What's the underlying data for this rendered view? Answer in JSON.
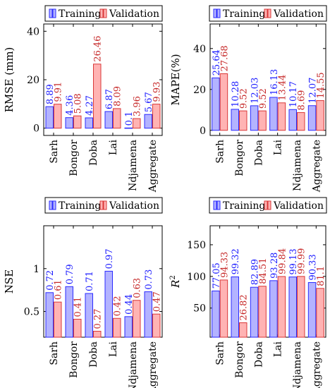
{
  "legend": {
    "training": "Training",
    "validation": "Validation"
  },
  "colors": {
    "training_fill": "#b3b3ff",
    "training_stroke": "#2b2bff",
    "training_label": "#1a1aff",
    "validation_fill": "#ffb3b3",
    "validation_stroke": "#d93838",
    "validation_label": "#c62828",
    "axis": "#000000"
  },
  "chart_data": [
    {
      "type": "bar",
      "categories": [
        "Sarh",
        "Bongor",
        "Doba",
        "Lai",
        "Ndjamena",
        "Aggregate"
      ],
      "ylabel": "RMSE (mm)",
      "ylabel_sup": "",
      "ylim": [
        -3,
        43
      ],
      "yticks": [
        0,
        20,
        40
      ],
      "series": [
        {
          "name": "Training",
          "values": [
            8.89,
            4.36,
            4.27,
            6.87,
            0.1,
            5.67
          ],
          "labels": [
            "8.89",
            "4.36",
            "4.27",
            "6.87",
            "0.1",
            "5.67"
          ]
        },
        {
          "name": "Validation",
          "values": [
            9.91,
            5.08,
            26.46,
            8.09,
            3.96,
            9.93
          ],
          "labels": [
            "9.91",
            "5.08",
            "26.46",
            "8.09",
            "3.96",
            "9.93"
          ]
        }
      ],
      "legend_position": "top"
    },
    {
      "type": "bar",
      "categories": [
        "Sarh",
        "Bongor",
        "Doba",
        "Lai",
        "Ndjamena",
        "Aggregate"
      ],
      "ylabel": "MAPE(%)",
      "ylabel_sup": "",
      "ylim": [
        -2.5,
        52
      ],
      "yticks": [
        0,
        20,
        40
      ],
      "series": [
        {
          "name": "Training",
          "values": [
            25.64,
            10.28,
            12.03,
            16.13,
            10.17,
            12.07
          ],
          "labels": [
            "25.64",
            "10.28",
            "12.03",
            "16.13",
            "10.17",
            "12.07"
          ]
        },
        {
          "name": "Validation",
          "values": [
            27.68,
            9.52,
            9.52,
            13.44,
            8.69,
            14.55
          ],
          "labels": [
            "27.68",
            "9.52",
            "9.52",
            "13.44",
            "8.69",
            "14.55"
          ]
        }
      ],
      "legend_position": "top"
    },
    {
      "type": "bar",
      "categories": [
        "Sarh",
        "Bongor",
        "Doba",
        "Lai",
        "Ndjamena",
        "Aggregate"
      ],
      "ylabel": "NSE",
      "ylabel_sup": "",
      "ylim": [
        0.2,
        1.5
      ],
      "yticks": [
        0.5,
        1
      ],
      "series": [
        {
          "name": "Training",
          "values": [
            0.72,
            0.79,
            0.71,
            0.97,
            0.44,
            0.73
          ],
          "labels": [
            "0.72",
            "0.79",
            "0.71",
            "0.97",
            "0.44",
            "0.73"
          ]
        },
        {
          "name": "Validation",
          "values": [
            0.61,
            0.41,
            0.27,
            0.42,
            0.63,
            0.47
          ],
          "labels": [
            "0.61",
            "0.41",
            "0.27",
            "0.42",
            "0.63",
            "0.47"
          ]
        }
      ],
      "legend_position": "top"
    },
    {
      "type": "bar",
      "categories": [
        "Sarh",
        "Bongor",
        "Doba",
        "Lai",
        "Ndjamena",
        "Aggregate"
      ],
      "ylabel": "R",
      "ylabel_sup": "2",
      "ylim": [
        4,
        180
      ],
      "yticks": [
        50,
        100,
        150
      ],
      "series": [
        {
          "name": "Training",
          "values": [
            77.05,
            99.32,
            82.89,
            93.28,
            99.13,
            90.33
          ],
          "labels": [
            "77.05",
            "99.32",
            "82.89",
            "93.28",
            "99.13",
            "90.33"
          ]
        },
        {
          "name": "Validation",
          "values": [
            94.33,
            26.82,
            84.51,
            99.84,
            99.99,
            81.1
          ],
          "labels": [
            "94.33",
            "26.82",
            "84.51",
            "99.84",
            "99.99",
            "81.1"
          ]
        }
      ],
      "legend_position": "top"
    }
  ]
}
